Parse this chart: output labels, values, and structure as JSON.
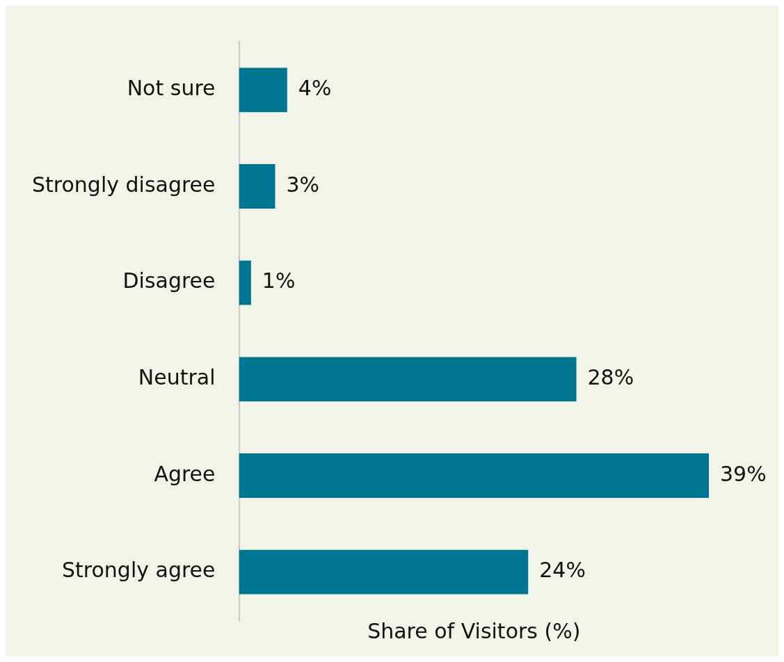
{
  "chart_data": {
    "type": "bar",
    "orientation": "horizontal",
    "xlabel": "Share of Visitors (%)",
    "categories": [
      "Not sure",
      "Strongly disagree",
      "Disagree",
      "Neutral",
      "Agree",
      "Strongly agree"
    ],
    "values": [
      4,
      3,
      1,
      28,
      39,
      24
    ],
    "value_labels": [
      "4%",
      "3%",
      "1%",
      "28%",
      "39%",
      "24%"
    ],
    "color": "#00758f",
    "grid": false,
    "legend": false,
    "tick_labels": "y"
  }
}
